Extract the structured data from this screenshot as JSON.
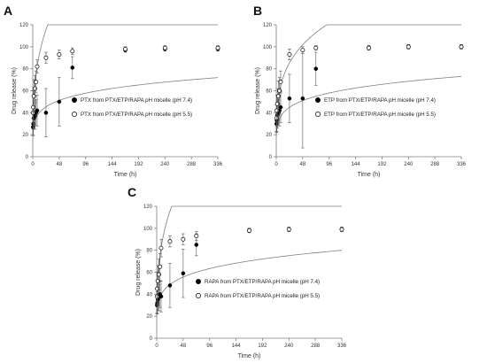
{
  "figure": {
    "panels": [
      "A",
      "B",
      "C"
    ]
  },
  "colors": {
    "axis": "#7f7f7f",
    "curve": "#7f7f7f",
    "marker_filled": "#000000",
    "marker_open": "#ffffff",
    "text": "#333333"
  },
  "chart_data": [
    {
      "panel": "A",
      "type": "scatter",
      "xlabel": "Time (h)",
      "ylabel": "Drug release (%)",
      "xlim": [
        0,
        336
      ],
      "ylim": [
        0,
        120
      ],
      "x_ticks": [
        "0",
        "48",
        "96",
        "144",
        "192",
        "240",
        "288",
        "336"
      ],
      "y_ticks": [
        "0",
        "20",
        "40",
        "60",
        "80",
        "100",
        "120"
      ],
      "legend_position": "center-right",
      "series": [
        {
          "name": "PTX from PTX/ETP/RAPA pH micelle (pH 7.4)",
          "marker": "filled-circle",
          "x": [
            0.5,
            1,
            2,
            4,
            6,
            8,
            24,
            48,
            72,
            168,
            240,
            336
          ],
          "y": [
            27,
            30,
            35,
            37,
            40,
            42,
            40,
            50,
            81,
            97,
            98,
            98
          ],
          "err": [
            8,
            10,
            10,
            12,
            12,
            14,
            22,
            22,
            10,
            2,
            2,
            2
          ],
          "fit": [
            26,
            8
          ]
        },
        {
          "name": "PTX from PTX/ETP/RAPA pH micelle (pH 5.5)",
          "marker": "open-circle",
          "x": [
            0.5,
            1,
            2,
            4,
            6,
            8,
            24,
            48,
            72,
            168,
            240,
            336
          ],
          "y": [
            40,
            45,
            55,
            62,
            68,
            82,
            90,
            93,
            96,
            98,
            99,
            99
          ],
          "err": [
            15,
            15,
            15,
            12,
            10,
            6,
            5,
            4,
            3,
            2,
            2,
            2
          ],
          "fit": [
            43,
            4.5
          ]
        }
      ]
    },
    {
      "panel": "B",
      "type": "scatter",
      "xlabel": "Time (h)",
      "ylabel": "Drug release (%)",
      "xlim": [
        0,
        336
      ],
      "ylim": [
        0,
        120
      ],
      "x_ticks": [
        "0",
        "48",
        "96",
        "144",
        "192",
        "240",
        "288",
        "336"
      ],
      "y_ticks": [
        "0",
        "20",
        "40",
        "60",
        "80",
        "100",
        "120"
      ],
      "legend_position": "center-right",
      "series": [
        {
          "name": "ETP from PTX/ETP/RAPA pH micelle (pH 7.4)",
          "marker": "filled-circle",
          "x": [
            0.5,
            1,
            2,
            4,
            6,
            8,
            24,
            48,
            72,
            168,
            240,
            336
          ],
          "y": [
            30,
            33,
            38,
            40,
            42,
            45,
            53,
            53,
            80,
            99,
            100,
            100
          ],
          "err": [
            8,
            10,
            12,
            12,
            14,
            14,
            22,
            45,
            15,
            2,
            2,
            2
          ],
          "fit": [
            25,
            7.6
          ]
        },
        {
          "name": "ETP from PTX/ETP/RAPA pH micelle (pH 5.5)",
          "marker": "open-circle",
          "x": [
            0.5,
            1,
            2,
            4,
            6,
            8,
            24,
            48,
            72,
            168,
            240,
            336
          ],
          "y": [
            35,
            42,
            48,
            55,
            60,
            68,
            93,
            97,
            99,
            99,
            100,
            100
          ],
          "err": [
            12,
            14,
            14,
            14,
            12,
            10,
            5,
            3,
            2,
            2,
            2,
            2
          ],
          "fit": [
            38,
            5.5
          ]
        }
      ]
    },
    {
      "panel": "C",
      "type": "scatter",
      "xlabel": "Time (h)",
      "ylabel": "Drug release (%)",
      "xlim": [
        0,
        336
      ],
      "ylim": [
        0,
        120
      ],
      "x_ticks": [
        "0",
        "48",
        "96",
        "144",
        "192",
        "240",
        "288",
        "336"
      ],
      "y_ticks": [
        "0",
        "20",
        "40",
        "60",
        "80",
        "100",
        "120"
      ],
      "legend_position": "center-right",
      "series": [
        {
          "name": "RAPA from PTX/ETP/RAPA pH micelle (pH 7.4)",
          "marker": "filled-circle",
          "x": [
            0.5,
            1,
            2,
            4,
            6,
            8,
            24,
            48,
            72,
            168,
            240,
            336
          ],
          "y": [
            30,
            32,
            35,
            37,
            40,
            38,
            48,
            59,
            85,
            98,
            99,
            99
          ],
          "err": [
            8,
            10,
            10,
            12,
            12,
            14,
            20,
            22,
            10,
            2,
            2,
            2
          ],
          "fit": [
            27,
            7.5
          ]
        },
        {
          "name": "RAPA from PTX/ETP/RAPA pH micelle (pH 5.5)",
          "marker": "open-circle",
          "x": [
            0.5,
            1,
            2,
            4,
            6,
            8,
            24,
            48,
            72,
            168,
            240,
            336
          ],
          "y": [
            38,
            45,
            52,
            58,
            65,
            82,
            88,
            90,
            93,
            98,
            99,
            99
          ],
          "err": [
            15,
            15,
            14,
            14,
            12,
            8,
            5,
            5,
            4,
            2,
            2,
            2
          ],
          "fit": [
            43,
            4.5
          ]
        }
      ]
    }
  ]
}
